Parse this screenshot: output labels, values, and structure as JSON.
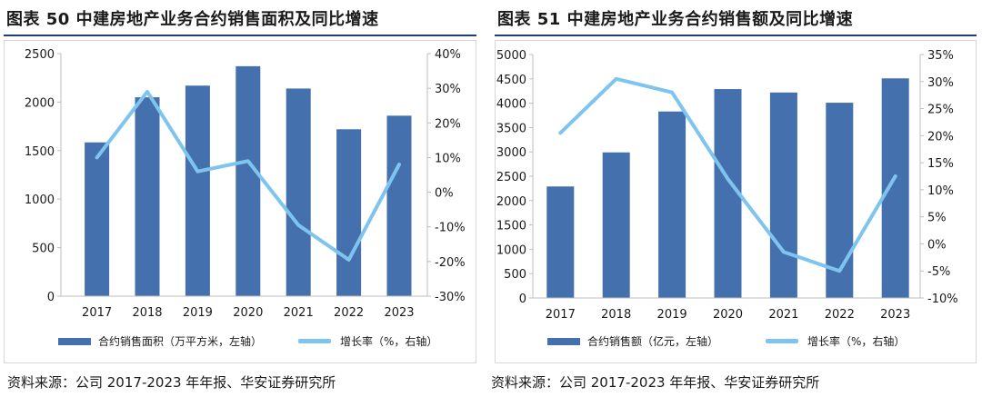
{
  "colors": {
    "bar": "#4471ad",
    "line": "#7ec4ee",
    "rule": "#1f3d7a",
    "axis": "#bdbdbd"
  },
  "chart_data": [
    {
      "type": "bar+line",
      "title": "图表 50 中建房地产业务合约销售面积及同比增速",
      "categories": [
        "2017",
        "2018",
        "2019",
        "2020",
        "2021",
        "2022",
        "2023"
      ],
      "series": [
        {
          "name": "合约销售面积（万平方米，左轴）",
          "type": "bar",
          "axis": "left",
          "values": [
            1585,
            2050,
            2170,
            2370,
            2140,
            1720,
            1860
          ]
        },
        {
          "name": "增长率（%，右轴）",
          "type": "line",
          "axis": "right",
          "values": [
            10.0,
            29.0,
            6.0,
            9.0,
            -9.5,
            -19.5,
            8.0
          ]
        }
      ],
      "left_axis": {
        "min": 0,
        "max": 2500,
        "step": 500,
        "tick_labels": [
          "0",
          "500",
          "1000",
          "1500",
          "2000",
          "2500"
        ]
      },
      "right_axis": {
        "min": -30,
        "max": 40,
        "step": 10,
        "tick_labels": [
          "-30%",
          "-20%",
          "-10%",
          "0%",
          "10%",
          "20%",
          "30%",
          "40%"
        ]
      },
      "legend": {
        "bar_label": "合约销售面积（万平方米，左轴）",
        "line_label": "增长率（%，右轴）"
      },
      "source": "资料来源：公司 2017-2023 年年报、华安证券研究所"
    },
    {
      "type": "bar+line",
      "title": "图表 51 中建房地产业务合约销售额及同比增速",
      "categories": [
        "2017",
        "2018",
        "2019",
        "2020",
        "2021",
        "2022",
        "2023"
      ],
      "series": [
        {
          "name": "合约销售额（亿元，左轴）",
          "type": "bar",
          "axis": "left",
          "values": [
            2290,
            2990,
            3830,
            4290,
            4220,
            4010,
            4510
          ]
        },
        {
          "name": "增长率（%，右轴）",
          "type": "line",
          "axis": "right",
          "values": [
            20.5,
            30.5,
            28.0,
            12.0,
            -1.5,
            -5.0,
            12.5
          ]
        }
      ],
      "left_axis": {
        "min": 0,
        "max": 5000,
        "step": 500,
        "tick_labels": [
          "0",
          "500",
          "1000",
          "1500",
          "2000",
          "2500",
          "3000",
          "3500",
          "4000",
          "4500",
          "5000"
        ]
      },
      "right_axis": {
        "min": -10,
        "max": 35,
        "step": 5,
        "tick_labels": [
          "-10%",
          "-5%",
          "0%",
          "5%",
          "10%",
          "15%",
          "20%",
          "25%",
          "30%",
          "35%"
        ]
      },
      "legend": {
        "bar_label": "合约销售额（亿元，左轴）",
        "line_label": "增长率（%，右轴）"
      },
      "source": "资料来源：公司 2017-2023 年年报、华安证券研究所"
    }
  ]
}
